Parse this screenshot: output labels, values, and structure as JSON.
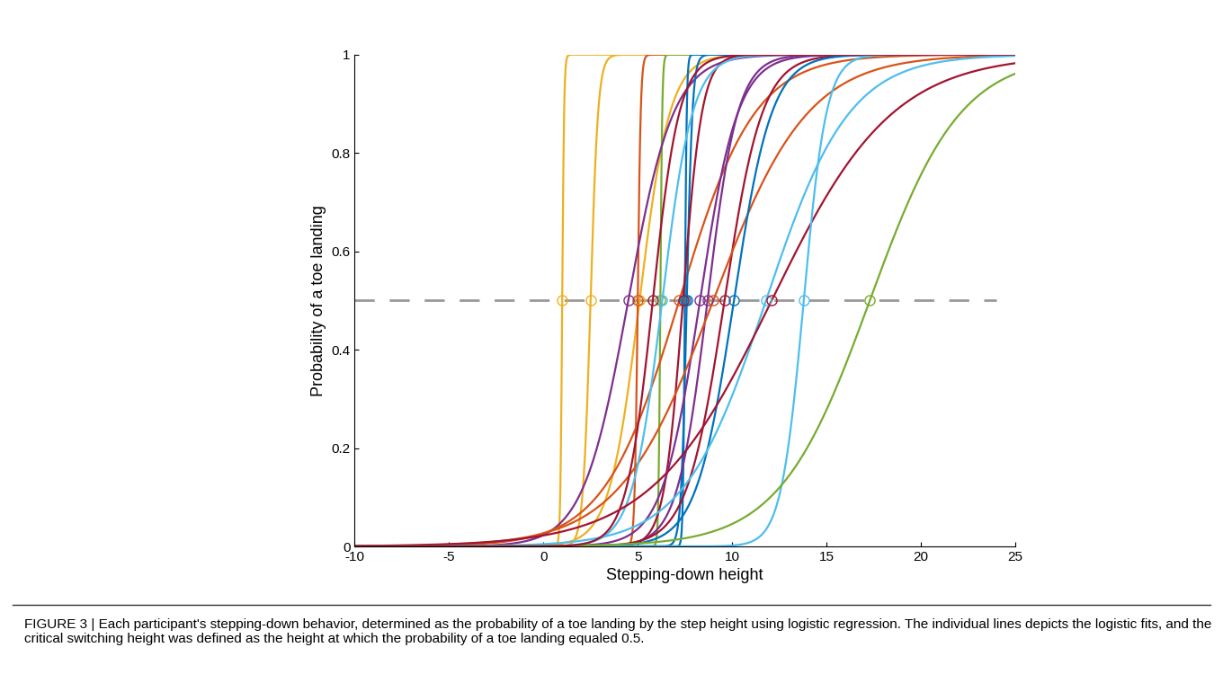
{
  "chart_data": {
    "type": "logistic",
    "xlabel": "Stepping-down height",
    "ylabel": "Probability of a toe landing",
    "caption": "FIGURE 3 | Each participant's stepping-down behavior, determined as the probability of a toe landing by the step height using logistic regression. The individual lines depicts the logistic fits, and the critical switching height was defined as the height at which the probability of a toe landing equaled 0.5.",
    "xlim": [
      -10,
      25
    ],
    "xticks": [
      -10,
      -5,
      0,
      5,
      10,
      15,
      20,
      25
    ],
    "ylim": [
      0,
      1
    ],
    "yticks": [
      0,
      0.2,
      0.4,
      0.6,
      0.8,
      1
    ],
    "marker": "o",
    "grid": false,
    "reference_line": {
      "y": 0.5,
      "x": [
        -10,
        24
      ]
    },
    "series": [
      {
        "color": "#EDB120",
        "switch_height": 1.0,
        "slope_scale": 0.05
      },
      {
        "color": "#EDB120",
        "switch_height": 2.5,
        "slope_scale": 0.2
      },
      {
        "color": "#EDB120",
        "switch_height": 5.1,
        "slope_scale": 0.8
      },
      {
        "color": "#D95319",
        "switch_height": 5.0,
        "slope_scale": 0.08
      },
      {
        "color": "#77AC30",
        "switch_height": 6.2,
        "slope_scale": 0.05
      },
      {
        "color": "#7E2F8E",
        "switch_height": 4.5,
        "slope_scale": 1.2
      },
      {
        "color": "#D95319",
        "switch_height": 7.2,
        "slope_scale": 2.0
      },
      {
        "color": "#0072BD",
        "switch_height": 7.5,
        "slope_scale": 0.05
      },
      {
        "color": "#0072BD",
        "switch_height": 7.6,
        "slope_scale": 0.15
      },
      {
        "color": "#A2142F",
        "switch_height": 7.4,
        "slope_scale": 0.5
      },
      {
        "color": "#7E2F8E",
        "switch_height": 8.3,
        "slope_scale": 1.0
      },
      {
        "color": "#7E2F8E",
        "switch_height": 8.7,
        "slope_scale": 0.8
      },
      {
        "color": "#A2142F",
        "switch_height": 9.6,
        "slope_scale": 1.0
      },
      {
        "color": "#D95319",
        "switch_height": 9.0,
        "slope_scale": 2.5
      },
      {
        "color": "#0072BD",
        "switch_height": 10.1,
        "slope_scale": 1.0
      },
      {
        "color": "#4DBEEE",
        "switch_height": 6.3,
        "slope_scale": 0.8
      },
      {
        "color": "#4DBEEE",
        "switch_height": 11.8,
        "slope_scale": 2.2
      },
      {
        "color": "#A2142F",
        "switch_height": 12.1,
        "slope_scale": 3.2
      },
      {
        "color": "#4DBEEE",
        "switch_height": 13.8,
        "slope_scale": 0.6
      },
      {
        "color": "#77AC30",
        "switch_height": 17.3,
        "slope_scale": 2.4
      },
      {
        "color": "#A2142F",
        "switch_height": 5.8,
        "slope_scale": 0.7
      }
    ]
  }
}
